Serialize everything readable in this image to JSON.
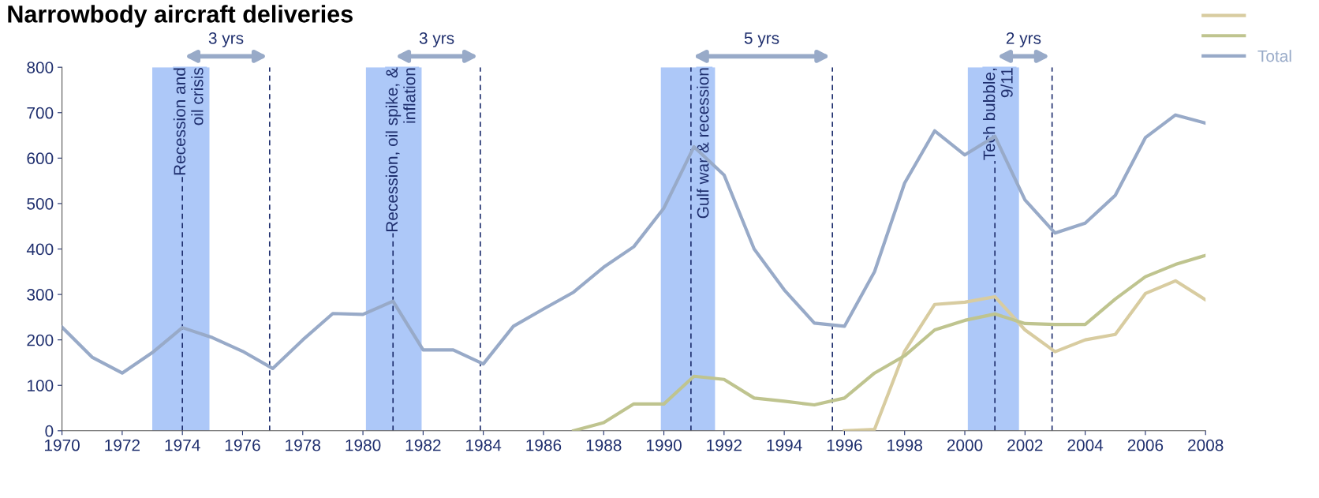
{
  "chart_data": {
    "type": "line",
    "title": "Narrowbody aircraft deliveries",
    "x": [
      1970,
      1971,
      1972,
      1973,
      1974,
      1975,
      1976,
      1977,
      1978,
      1979,
      1980,
      1981,
      1982,
      1983,
      1984,
      1985,
      1986,
      1987,
      1988,
      1989,
      1990,
      1991,
      1992,
      1993,
      1994,
      1995,
      1996,
      1997,
      1998,
      1999,
      2000,
      2001,
      2002,
      2003,
      2004,
      2005,
      2006,
      2007,
      2008
    ],
    "series": [
      {
        "color": "#d8cca0",
        "x": [
          1996,
          1997,
          1998,
          1999,
          2000,
          2001,
          2002,
          2003,
          2004,
          2005,
          2006,
          2007,
          2008
        ],
        "values": [
          0,
          3,
          175,
          278,
          283,
          295,
          222,
          174,
          200,
          212,
          302,
          330,
          288
        ]
      },
      {
        "color": "#bfc48f",
        "x": [
          1987,
          1988,
          1989,
          1990,
          1991,
          1992,
          1993,
          1994,
          1995,
          1996,
          1997,
          1998,
          1999,
          2000,
          2001,
          2002,
          2003,
          2004,
          2005,
          2006,
          2007,
          2008
        ],
        "values": [
          0,
          18,
          59,
          59,
          120,
          113,
          72,
          65,
          57,
          72,
          127,
          165,
          222,
          243,
          257,
          236,
          234,
          234,
          290,
          339,
          366,
          386
        ]
      },
      {
        "name": "Total",
        "color": "#98aac8",
        "values": [
          228,
          162,
          127,
          172,
          227,
          205,
          175,
          137,
          200,
          258,
          256,
          285,
          178,
          178,
          147,
          230,
          268,
          305,
          360,
          405,
          490,
          625,
          563,
          400,
          310,
          237,
          230,
          350,
          545,
          660,
          607,
          648,
          508,
          435,
          457,
          518,
          645,
          695,
          677
        ]
      }
    ],
    "xlim": [
      1970,
      2008
    ],
    "xticks": [
      1970,
      1972,
      1974,
      1976,
      1978,
      1980,
      1982,
      1984,
      1986,
      1988,
      1990,
      1992,
      1994,
      1996,
      1998,
      2000,
      2002,
      2004,
      2006,
      2008
    ],
    "ylim": [
      0,
      800
    ],
    "yticks": [
      0,
      100,
      200,
      300,
      400,
      500,
      600,
      700,
      800
    ],
    "bands": [
      {
        "axis": "x",
        "from": 1973.0,
        "to": 1974.9,
        "label": "Recession and\noil crisis",
        "color": "#adc8f8"
      },
      {
        "axis": "x",
        "from": 1980.1,
        "to": 1981.95,
        "label": "Recession, oil spike, &\ninflation",
        "color": "#adc8f8"
      },
      {
        "axis": "x",
        "from": 1989.9,
        "to": 1991.7,
        "label": "Gulf war & recession",
        "color": "#adc8f8"
      },
      {
        "axis": "x",
        "from": 2000.1,
        "to": 2001.8,
        "label": "Tech bubble,\n9/11",
        "color": "#adc8f8"
      }
    ],
    "ref_lines": [
      {
        "axis": "x",
        "value": 1974,
        "color": "#1f2f6e",
        "line_style": "dashed"
      },
      {
        "axis": "x",
        "value": 1976.9,
        "color": "#1f2f6e",
        "line_style": "dashed"
      },
      {
        "axis": "x",
        "value": 1981,
        "color": "#1f2f6e",
        "line_style": "dashed"
      },
      {
        "axis": "x",
        "value": 1983.9,
        "color": "#1f2f6e",
        "line_style": "dashed"
      },
      {
        "axis": "x",
        "value": 1990.9,
        "color": "#1f2f6e",
        "line_style": "dashed"
      },
      {
        "axis": "x",
        "value": 1995.6,
        "color": "#1f2f6e",
        "line_style": "dashed"
      },
      {
        "axis": "x",
        "value": 2001,
        "color": "#1f2f6e",
        "line_style": "dashed"
      },
      {
        "axis": "x",
        "value": 2002.9,
        "color": "#1f2f6e",
        "line_style": "dashed"
      }
    ],
    "annotations": [
      "3 yrs",
      "3 yrs",
      "5 yrs",
      "2 yrs"
    ],
    "legend": "top right",
    "grid": false,
    "marker": "none",
    "line_style": "solid"
  }
}
